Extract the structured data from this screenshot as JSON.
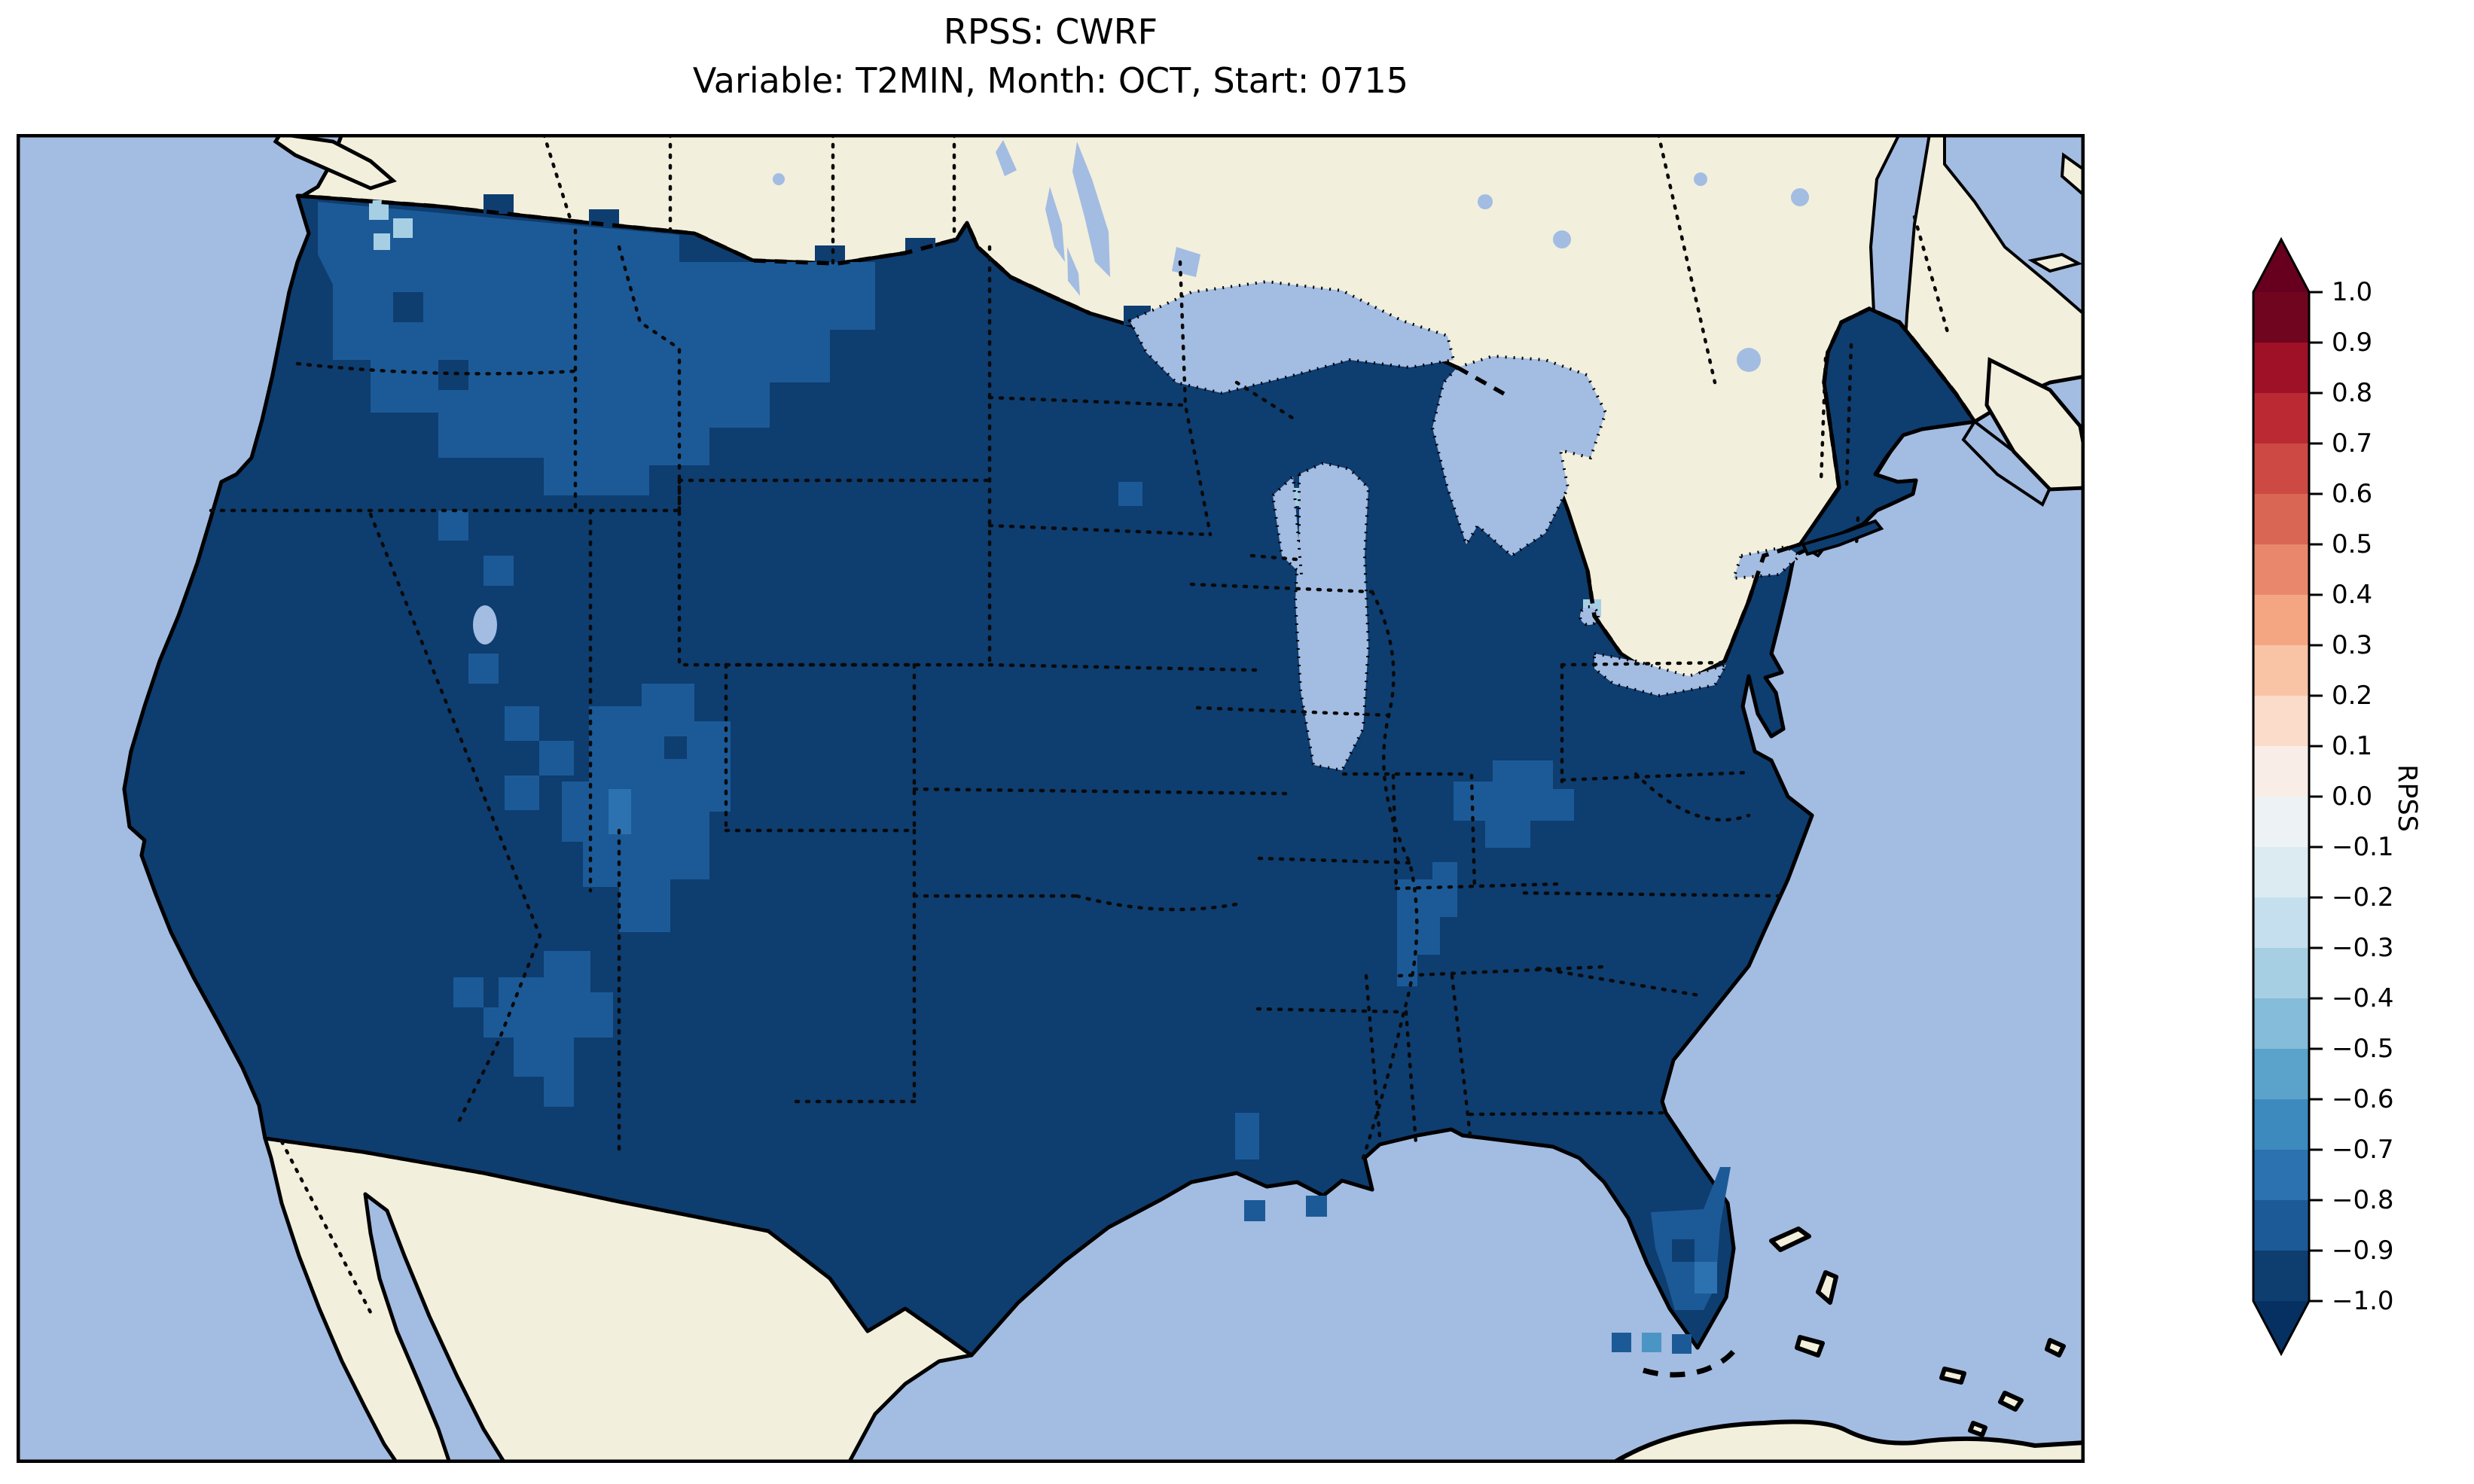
{
  "title": {
    "line1": "RPSS: CWRF",
    "line2": "Variable: T2MIN, Month: OCT, Start: 0715"
  },
  "colorbar": {
    "label": "RPSS",
    "tick_labels": [
      "1.0",
      "0.9",
      "0.8",
      "0.7",
      "0.6",
      "0.5",
      "0.4",
      "0.3",
      "0.2",
      "0.1",
      "0.0",
      "−0.1",
      "−0.2",
      "−0.3",
      "−0.4",
      "−0.5",
      "−0.6",
      "−0.7",
      "−0.8",
      "−0.9",
      "−1.0"
    ],
    "segment_colors": [
      "#70051f",
      "#9e1127",
      "#bb2a33",
      "#cc4944",
      "#d96655",
      "#e9876c",
      "#f4a683",
      "#f9c3a6",
      "#fbdcca",
      "#f8eee7",
      "#edf2f5",
      "#dcebf2",
      "#c5dfee",
      "#a7cfe4",
      "#84bcd9",
      "#5ba3cb",
      "#3d8abe",
      "#2c72b0",
      "#1c5a97",
      "#0e3d70"
    ],
    "extend_upper_color": "#67001f",
    "extend_lower_color": "#053061",
    "outline_color": "#000000"
  },
  "map": {
    "colors": {
      "ocean": "#a3bce2",
      "land_no_data": "#f2efdc",
      "bin_m10_m09": "#0e3d70",
      "bin_m09_m08": "#1c5a97",
      "bin_m08_m07": "#2c72b0",
      "bin_m07_m06": "#4b95c5",
      "bin_m04_m02": "#a7cfe4",
      "coastline": "#000000"
    }
  },
  "chart_data": {
    "type": "heatmap",
    "subtype": "geographic choropleth (gridded forecast-skill map over CONUS)",
    "title": "RPSS: CWRF",
    "subtitle": "Variable: T2MIN, Month: OCT, Start: 0715",
    "model": "CWRF",
    "variable": "T2MIN",
    "month": "OCT",
    "start": "0715",
    "score_name": "RPSS",
    "colorbar": {
      "label": "RPSS",
      "min": -1.0,
      "max": 1.0,
      "tick_step": 0.1,
      "n_bins": 20,
      "colormap": "RdBu_r, discrete 20 bins, extend arrows both ends",
      "orientation": "vertical, right side"
    },
    "extent": "Continental United States with surrounding Canada, Mexico, Pacific, Atlantic, Gulf of Mexico, Great Lakes, Cuba and Bahamas (non-US areas shown as no-data cream land / light blue water)",
    "summary": "RPSS is strongly negative (≤ −0.9) over nearly the entire CONUS; scattered areas reach −0.9 to −0.8, with a few isolated cells up to about −0.3.",
    "regions": [
      {
        "name": "Most of the continental US",
        "rpss_bin": "−1.0 to −0.9 (or below)"
      },
      {
        "name": "Western Washington, northern Idaho panhandle, northwestern Montana",
        "rpss_bin": "−0.9 to −0.8"
      },
      {
        "name": "Central Colorado Rockies / Four Corners area",
        "rpss_bin": "−0.9 to −0.8 with isolated −0.8 to −0.7 cells"
      },
      {
        "name": "West-central New Mexico / eastern Arizona",
        "rpss_bin": "−0.9 to −0.8"
      },
      {
        "name": "Eastern Tennessee / western North Carolina",
        "rpss_bin": "−0.9 to −0.8"
      },
      {
        "name": "Northeastern Alabama / northwestern Georgia",
        "rpss_bin": "−0.9 to −0.8"
      },
      {
        "name": "Southern Florida peninsula",
        "rpss_bin": "−0.9 to −0.8 with one −0.8 to −0.7 cell"
      },
      {
        "name": "Coastal Louisiana cells",
        "rpss_bin": "−0.9 to −0.8"
      },
      {
        "name": "Isolated cells near Florida Bay",
        "rpss_bin": "−0.8 to −0.6"
      },
      {
        "name": "Scattered single cells near Puget Sound and Great Lakes shores",
        "rpss_bin": "about −0.4 to −0.2"
      }
    ],
    "grid": "coarse rectangular model grid cells (pixelated patch edges)",
    "legend_position": "colorbar right",
    "gridlines": false
  }
}
